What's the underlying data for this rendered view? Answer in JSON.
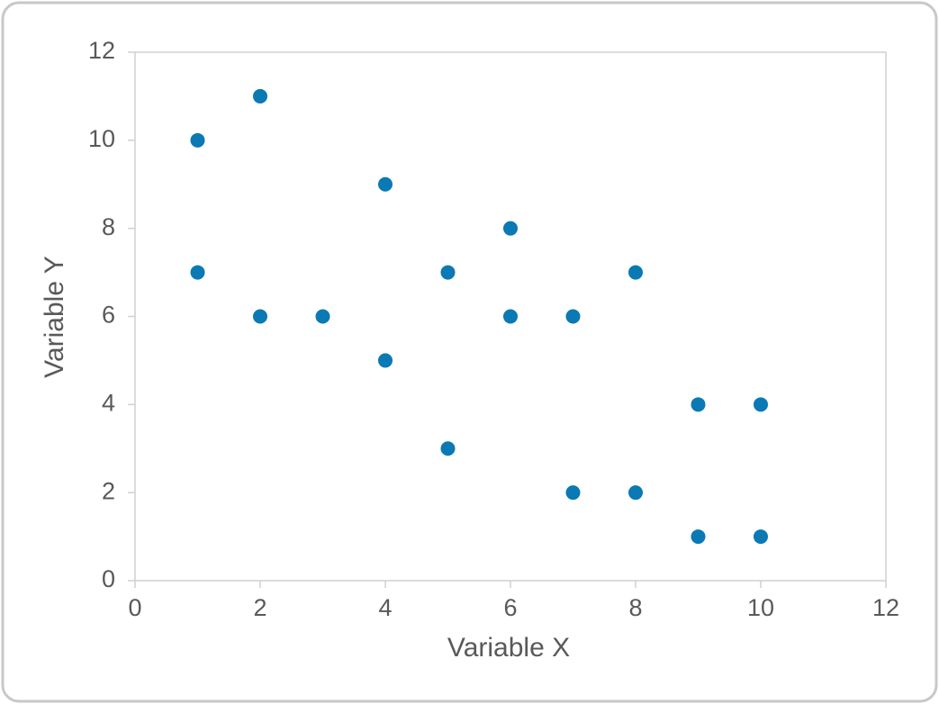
{
  "chart_data": {
    "type": "scatter",
    "x_label": "Variable X",
    "y_label": "Variable Y",
    "series": [
      {
        "color": "#0a79b4",
        "x": [
          1,
          1,
          2,
          2,
          3,
          4,
          4,
          5,
          5,
          6,
          6,
          7,
          7,
          8,
          8,
          9,
          9,
          10,
          10
        ],
        "values": [
          10,
          7,
          11,
          6,
          6,
          9,
          5,
          7,
          3,
          8,
          6,
          6,
          2,
          7,
          2,
          4,
          1,
          4,
          1
        ]
      }
    ],
    "xlim": [
      0,
      12
    ],
    "xticks": [
      0,
      2,
      4,
      6,
      8,
      10,
      12
    ],
    "ylim": [
      0,
      12
    ],
    "yticks": [
      0,
      2,
      4,
      6,
      8,
      10,
      12
    ],
    "grid": false
  }
}
